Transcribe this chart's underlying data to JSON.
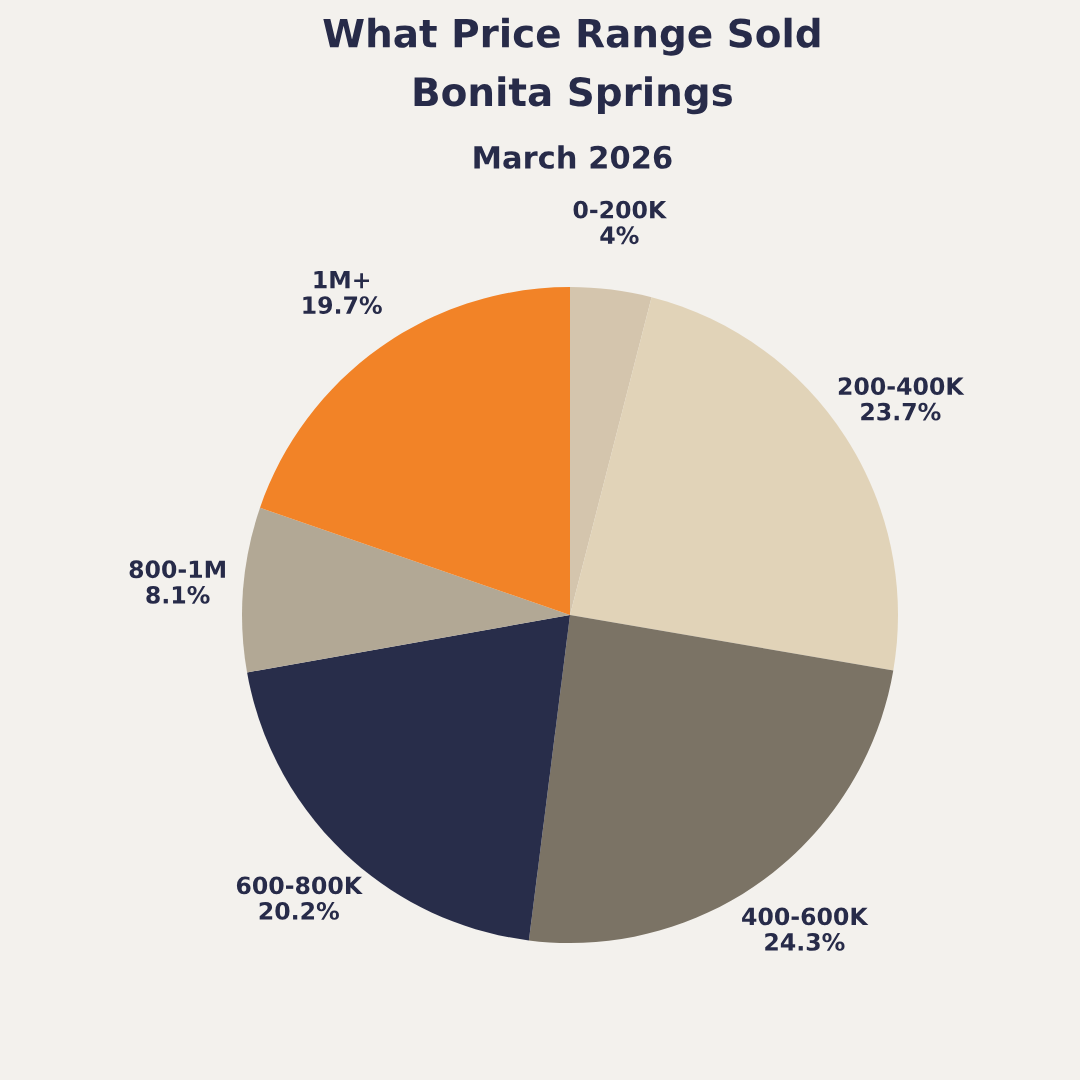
{
  "chart_data": {
    "type": "pie",
    "title": "What Price Range Sold\nBonita Springs",
    "subtitle": "March 2026",
    "categories": [
      "0-200K",
      "200-400K",
      "400-600K",
      "600-800K",
      "800-1M",
      "1M+"
    ],
    "values": [
      4,
      23.7,
      24.3,
      20.2,
      8.1,
      19.7
    ],
    "value_labels": [
      "4%",
      "23.7%",
      "24.3%",
      "20.2%",
      "8.1%",
      "19.7%"
    ],
    "colors": [
      "#d4c5ad",
      "#e1d3b8",
      "#7b7365",
      "#282d4a",
      "#b2a895",
      "#f28327"
    ]
  }
}
